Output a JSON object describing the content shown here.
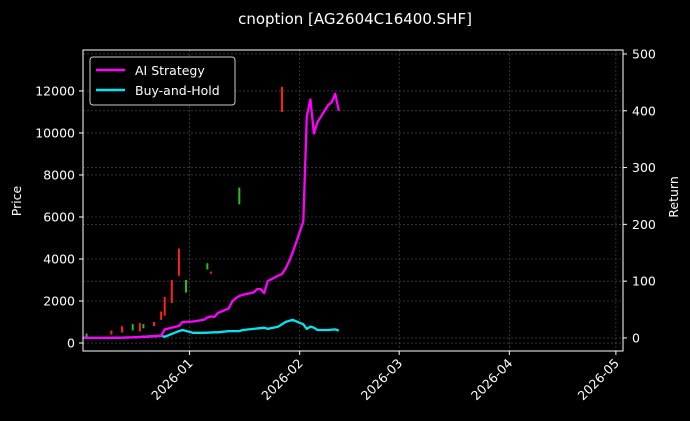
{
  "chart_data": {
    "type": "line",
    "title": "cnoption [AG2604C16400.SHF]",
    "xlabel": "",
    "ylabel": "Price",
    "y2label": "Return",
    "x_ticks": [
      "2026-01",
      "2026-02",
      "2026-03",
      "2026-04",
      "2026-05"
    ],
    "y_ticks": [
      0,
      2000,
      4000,
      6000,
      8000,
      10000,
      12000
    ],
    "y2_ticks": [
      0,
      100,
      200,
      300,
      400,
      500
    ],
    "ylim": [
      -380,
      13950
    ],
    "y2lim": [
      -23,
      507
    ],
    "xlim": [
      "2025-12-02",
      "2026-05-03"
    ],
    "grid": true,
    "legend_position": "upper left",
    "legend": [
      "AI Strategy",
      "Buy-and-Hold"
    ],
    "colors": {
      "background": "#000000",
      "ai_strategy": "#ff00ff",
      "buy_and_hold": "#00e5ee",
      "candle_up": "#ff2020",
      "candle_down": "#20c020",
      "grid": "#555555"
    },
    "series": [
      {
        "name": "AI Strategy",
        "axis": "right",
        "x": [
          "2025-12-02",
          "2025-12-09",
          "2025-12-16",
          "2025-12-22",
          "2025-12-24",
          "2025-12-25",
          "2025-12-29",
          "2025-12-30",
          "2026-01-02",
          "2026-01-05",
          "2026-01-06",
          "2026-01-07",
          "2026-01-08",
          "2026-01-09",
          "2026-01-12",
          "2026-01-13",
          "2026-01-14",
          "2026-01-15",
          "2026-01-16",
          "2026-01-19",
          "2026-01-20",
          "2026-01-21",
          "2026-01-22",
          "2026-01-23",
          "2026-01-26",
          "2026-01-27",
          "2026-01-28",
          "2026-01-29",
          "2026-01-30",
          "2026-02-02",
          "2026-02-03",
          "2026-02-04",
          "2026-02-05",
          "2026-02-06",
          "2026-02-09",
          "2026-02-10",
          "2026-02-11",
          "2026-02-12"
        ],
        "values": [
          0,
          0,
          1,
          3,
          4,
          15,
          21,
          28,
          29,
          32,
          36,
          38,
          37,
          44,
          52,
          64,
          70,
          74,
          76,
          80,
          86,
          86,
          79,
          100,
          110,
          112,
          122,
          135,
          150,
          205,
          390,
          420,
          360,
          380,
          410,
          415,
          430,
          400
        ]
      },
      {
        "name": "Buy-and-Hold",
        "axis": "right",
        "x": [
          "2025-12-02",
          "2025-12-09",
          "2025-12-16",
          "2025-12-22",
          "2025-12-24",
          "2025-12-25",
          "2025-12-29",
          "2025-12-30",
          "2026-01-02",
          "2026-01-05",
          "2026-01-08",
          "2026-01-09",
          "2026-01-12",
          "2026-01-15",
          "2026-01-16",
          "2026-01-19",
          "2026-01-22",
          "2026-01-23",
          "2026-01-26",
          "2026-01-27",
          "2026-01-28",
          "2026-01-30",
          "2026-02-02",
          "2026-02-03",
          "2026-02-04",
          "2026-02-05",
          "2026-02-06",
          "2026-02-09",
          "2026-02-11",
          "2026-02-12"
        ],
        "values": [
          0,
          0,
          1,
          3,
          4,
          2,
          12,
          14,
          9,
          9,
          10,
          10,
          12,
          12,
          14,
          16,
          18,
          16,
          20,
          24,
          28,
          32,
          24,
          16,
          20,
          18,
          14,
          14,
          15,
          13
        ]
      },
      {
        "name": "Price (candlesticks)",
        "axis": "left",
        "type": "candlestick",
        "x": [
          "2025-12-03",
          "2025-12-10",
          "2025-12-13",
          "2025-12-16",
          "2025-12-18",
          "2025-12-19",
          "2025-12-22",
          "2025-12-24",
          "2025-12-25",
          "2025-12-27",
          "2025-12-29",
          "2025-12-31",
          "2026-01-06",
          "2026-01-07",
          "2026-01-15",
          "2026-01-27"
        ],
        "open": [
          250,
          400,
          500,
          600,
          550,
          700,
          800,
          1100,
          1300,
          1900,
          3200,
          2400,
          3500,
          3300,
          6600,
          11000
        ],
        "close": [
          450,
          600,
          800,
          900,
          950,
          900,
          1000,
          1500,
          2200,
          3000,
          4500,
          3000,
          3800,
          3400,
          7400,
          12200
        ],
        "direction": [
          "down",
          "up",
          "up",
          "down",
          "up",
          "down",
          "up",
          "up",
          "up",
          "up",
          "up",
          "down",
          "down",
          "up",
          "down",
          "up"
        ]
      }
    ]
  }
}
